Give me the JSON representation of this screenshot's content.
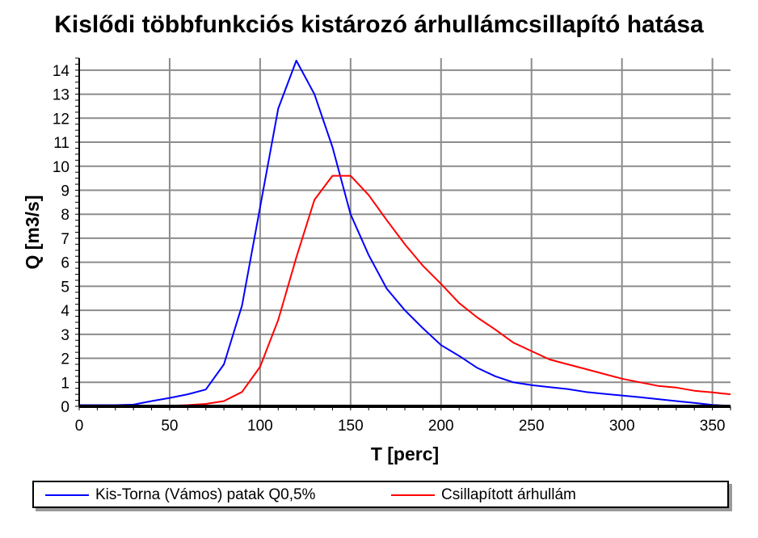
{
  "chart_data": {
    "type": "line",
    "title": "Kislődi többfunkciós kistározó árhullámcsillapító hatása",
    "xlabel": "T [perc]",
    "ylabel": "Q [m3/s]",
    "xlim": [
      0,
      360
    ],
    "ylim": [
      0,
      14.5
    ],
    "xticks": [
      0,
      50,
      100,
      150,
      200,
      250,
      300,
      350
    ],
    "yticks": [
      0,
      1,
      2,
      3,
      4,
      5,
      6,
      7,
      8,
      9,
      10,
      11,
      12,
      13,
      14
    ],
    "grid": true,
    "legend_position": "bottom",
    "series": [
      {
        "name": "Kis-Torna (Vámos) patak Q0,5%",
        "color": "#0000ff",
        "x": [
          0,
          20,
          30,
          40,
          50,
          60,
          70,
          80,
          90,
          100,
          110,
          120,
          130,
          140,
          150,
          160,
          170,
          180,
          190,
          200,
          210,
          220,
          230,
          240,
          250,
          260,
          270,
          280,
          290,
          300,
          310,
          320,
          330,
          340,
          350,
          360
        ],
        "y": [
          0.05,
          0.05,
          0.07,
          0.22,
          0.35,
          0.5,
          0.7,
          1.75,
          4.2,
          8.3,
          12.4,
          14.4,
          13.0,
          10.8,
          8.0,
          6.3,
          4.9,
          4.0,
          3.25,
          2.55,
          2.1,
          1.6,
          1.25,
          1.0,
          0.88,
          0.8,
          0.72,
          0.6,
          0.52,
          0.45,
          0.38,
          0.3,
          0.22,
          0.14,
          0.06,
          0.02
        ]
      },
      {
        "name": "Csillapított árhullám",
        "color": "#ff0000",
        "x": [
          0,
          50,
          60,
          70,
          80,
          90,
          100,
          110,
          120,
          130,
          140,
          150,
          160,
          170,
          180,
          190,
          200,
          210,
          220,
          230,
          240,
          250,
          260,
          270,
          280,
          290,
          300,
          310,
          320,
          330,
          340,
          350,
          360
        ],
        "y": [
          0.0,
          0.02,
          0.05,
          0.1,
          0.22,
          0.6,
          1.65,
          3.6,
          6.2,
          8.6,
          9.6,
          9.6,
          8.8,
          7.75,
          6.75,
          5.85,
          5.1,
          4.3,
          3.7,
          3.2,
          2.65,
          2.3,
          1.95,
          1.75,
          1.55,
          1.35,
          1.15,
          1.0,
          0.85,
          0.78,
          0.65,
          0.58,
          0.5
        ]
      }
    ]
  }
}
